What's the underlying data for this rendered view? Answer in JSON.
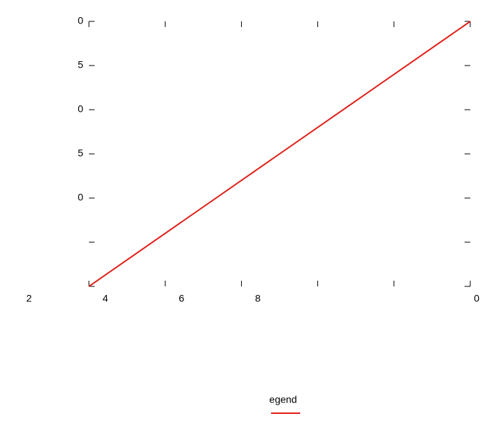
{
  "chart_data": {
    "type": "line",
    "x": [
      0,
      5
    ],
    "series": [
      {
        "color": "#e0201a",
        "values": [
          0,
          6
        ]
      }
    ],
    "xlim": [
      0,
      5
    ],
    "ylim": [
      0,
      6
    ],
    "xticks": [
      {
        "value": -1,
        "label": "2"
      },
      {
        "value": 0,
        "label": "4"
      },
      {
        "value": 1,
        "label": "6"
      },
      {
        "value": 2,
        "label": "8"
      },
      {
        "value": 3,
        "label": null
      },
      {
        "value": 4,
        "label": null
      },
      {
        "value": 5,
        "label": "0"
      }
    ],
    "yticks": [
      {
        "value": 0,
        "label": null
      },
      {
        "value": 1,
        "label": null
      },
      {
        "value": 2,
        "label": "0"
      },
      5,
      {
        "value": 4,
        "label": "0"
      },
      {
        "value": 3,
        "label": "5"
      },
      {
        "value": 6,
        "label": "0"
      }
    ],
    "legend_title": "egend",
    "legend": "bottom"
  }
}
